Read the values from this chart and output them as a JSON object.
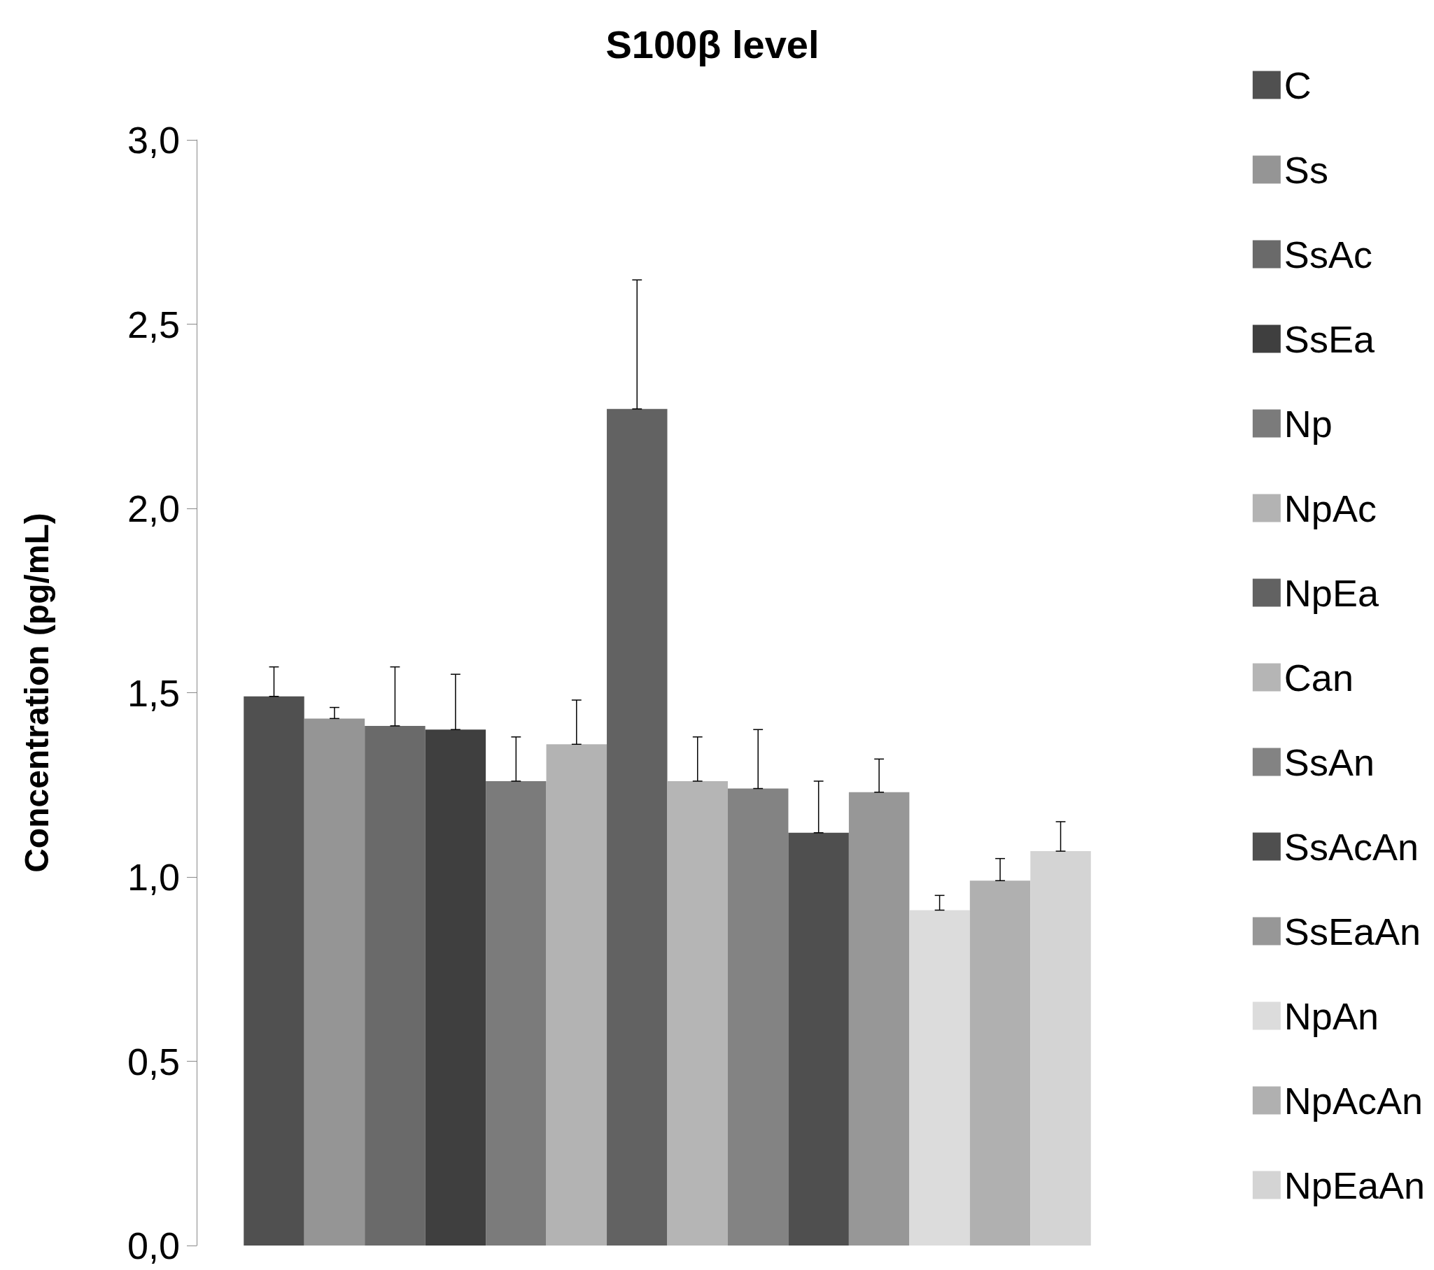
{
  "chart_data": {
    "type": "bar",
    "title": "S100β level",
    "ylabel": "Concentration (pg/mL)",
    "categories": [
      null
    ],
    "series": [
      {
        "name": "C",
        "color": "#505050",
        "values": [
          1.49
        ],
        "errors": [
          [
            1.49,
            1.57
          ]
        ]
      },
      {
        "name": "Ss",
        "color": "#959595",
        "values": [
          1.43
        ],
        "errors": [
          [
            1.43,
            1.46
          ]
        ]
      },
      {
        "name": "SsAc",
        "color": "#6a6a6a",
        "values": [
          1.41
        ],
        "errors": [
          [
            1.41,
            1.57
          ]
        ]
      },
      {
        "name": "SsEa",
        "color": "#3f3f3f",
        "values": [
          1.4
        ],
        "errors": [
          [
            1.4,
            1.55
          ]
        ]
      },
      {
        "name": "Np",
        "color": "#7b7b7b",
        "values": [
          1.26
        ],
        "errors": [
          [
            1.26,
            1.38
          ]
        ]
      },
      {
        "name": "NpAc",
        "color": "#b3b3b3",
        "values": [
          1.36
        ],
        "errors": [
          [
            1.36,
            1.48
          ]
        ]
      },
      {
        "name": "NpEa",
        "color": "#626262",
        "values": [
          2.27
        ],
        "errors": [
          [
            2.27,
            2.62
          ]
        ]
      },
      {
        "name": "Can",
        "color": "#b5b5b5",
        "values": [
          1.26
        ],
        "errors": [
          [
            1.26,
            1.38
          ]
        ]
      },
      {
        "name": "SsAn",
        "color": "#838383",
        "values": [
          1.24
        ],
        "errors": [
          [
            1.24,
            1.4
          ]
        ]
      },
      {
        "name": "SsAcAn",
        "color": "#4f4f4f",
        "values": [
          1.12
        ],
        "errors": [
          [
            1.12,
            1.26
          ]
        ]
      },
      {
        "name": "SsEaAn",
        "color": "#979797",
        "values": [
          1.23
        ],
        "errors": [
          [
            1.23,
            1.32
          ]
        ]
      },
      {
        "name": "NpAn",
        "color": "#dcdcdc",
        "values": [
          0.91
        ],
        "errors": [
          [
            0.91,
            0.95
          ]
        ]
      },
      {
        "name": "NpAcAn",
        "color": "#b0b0b0",
        "values": [
          0.99
        ],
        "errors": [
          [
            0.99,
            1.05
          ]
        ]
      },
      {
        "name": "NpEaAn",
        "color": "#d4d4d4",
        "values": [
          1.07
        ],
        "errors": [
          [
            1.07,
            1.15
          ]
        ]
      }
    ],
    "ylim": [
      0,
      3
    ],
    "yticks": [
      {
        "value": 0,
        "label": "0,0"
      },
      {
        "value": 0.5,
        "label": "0,5"
      },
      {
        "value": 1,
        "label": "1,0"
      },
      {
        "value": 1.5,
        "label": "1,5"
      },
      {
        "value": 2,
        "label": "2,0"
      },
      {
        "value": 2.5,
        "label": "2,5"
      },
      {
        "value": 3,
        "label": "3,0"
      }
    ],
    "grid": false,
    "legend": "right"
  }
}
